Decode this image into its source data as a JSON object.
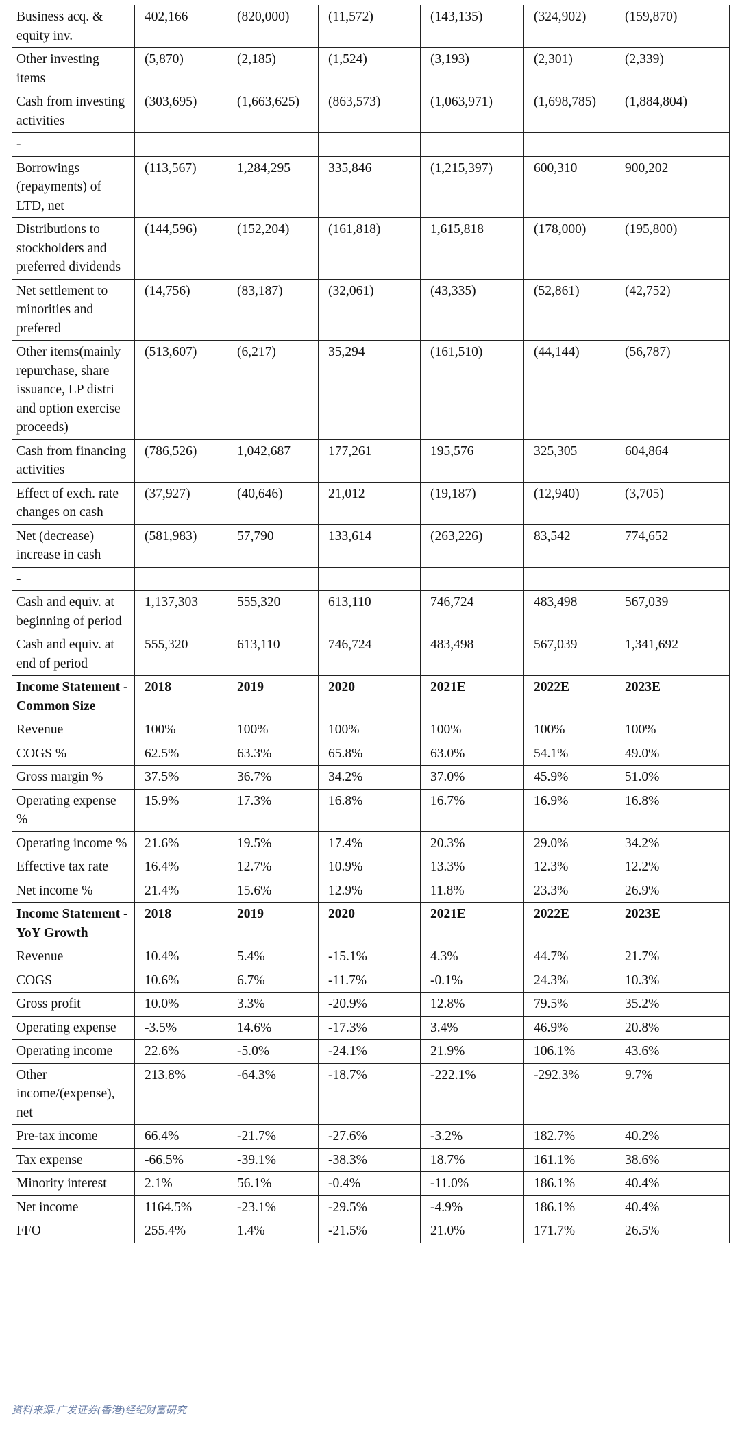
{
  "table": {
    "rows": [
      {
        "label": "Business acq. & equity inv.",
        "values": [
          "402,166",
          "(820,000)",
          "(11,572)",
          "(143,135)",
          "(324,902)",
          "(159,870)"
        ]
      },
      {
        "label": "Other investing items",
        "values": [
          "(5,870)",
          "(2,185)",
          "(1,524)",
          "(3,193)",
          "(2,301)",
          "(2,339)"
        ]
      },
      {
        "label": "Cash from investing activities",
        "values": [
          "(303,695)",
          "(1,663,625)",
          "(863,573)",
          "(1,063,971)",
          "(1,698,785)",
          "(1,884,804)"
        ]
      },
      {
        "label": "-",
        "values": []
      },
      {
        "label": "Borrowings (repayments) of LTD, net",
        "values": [
          "(113,567)",
          "1,284,295",
          "335,846",
          "(1,215,397)",
          "600,310",
          "900,202"
        ]
      },
      {
        "label": "Distributions to stockholders and preferred dividends",
        "values": [
          "(144,596)",
          "(152,204)",
          "(161,818)",
          "1,615,818",
          "(178,000)",
          "(195,800)"
        ]
      },
      {
        "label": "Net settlement to minorities and prefered",
        "values": [
          "(14,756)",
          "(83,187)",
          "(32,061)",
          "(43,335)",
          "(52,861)",
          "(42,752)"
        ]
      },
      {
        "label": "Other items(mainly repurchase, share issuance, LP distri and option exercise proceeds)",
        "values": [
          "(513,607)",
          "(6,217)",
          "35,294",
          "(161,510)",
          "(44,144)",
          "(56,787)"
        ]
      },
      {
        "label": "Cash from financing activities",
        "values": [
          "(786,526)",
          "1,042,687",
          "177,261",
          "195,576",
          "325,305",
          "604,864"
        ]
      },
      {
        "label": "Effect of exch. rate changes on cash",
        "values": [
          "(37,927)",
          "(40,646)",
          "21,012",
          "(19,187)",
          "(12,940)",
          "(3,705)"
        ]
      },
      {
        "label": "Net (decrease) increase in cash",
        "values": [
          "(581,983)",
          "57,790",
          "133,614",
          "(263,226)",
          "83,542",
          "774,652"
        ]
      },
      {
        "label": "-",
        "values": []
      },
      {
        "label": "Cash and equiv. at beginning of period",
        "values": [
          "1,137,303",
          "555,320",
          "613,110",
          "746,724",
          "483,498",
          "567,039"
        ]
      },
      {
        "label": "Cash and equiv. at end of period",
        "values": [
          "555,320",
          "613,110",
          "746,724",
          "483,498",
          "567,039",
          "1,341,692"
        ]
      },
      {
        "label": "Income Statement - Common Size",
        "values": [
          "2018",
          "2019",
          "2020",
          "2021E",
          "2022E",
          "2023E"
        ],
        "header": true
      },
      {
        "label": "Revenue",
        "values": [
          "100%",
          "100%",
          "100%",
          "100%",
          "100%",
          "100%"
        ]
      },
      {
        "label": "COGS %",
        "values": [
          "62.5%",
          "63.3%",
          "65.8%",
          "63.0%",
          "54.1%",
          "49.0%"
        ]
      },
      {
        "label": "Gross margin %",
        "values": [
          "37.5%",
          "36.7%",
          "34.2%",
          "37.0%",
          "45.9%",
          "51.0%"
        ]
      },
      {
        "label": "Operating expense %",
        "values": [
          "15.9%",
          "17.3%",
          "16.8%",
          "16.7%",
          "16.9%",
          "16.8%"
        ]
      },
      {
        "label": "Operating income %",
        "values": [
          "21.6%",
          "19.5%",
          "17.4%",
          "20.3%",
          "29.0%",
          "34.2%"
        ]
      },
      {
        "label": "Effective tax rate",
        "values": [
          "16.4%",
          "12.7%",
          "10.9%",
          "13.3%",
          "12.3%",
          "12.2%"
        ]
      },
      {
        "label": "Net income %",
        "values": [
          "21.4%",
          "15.6%",
          "12.9%",
          "11.8%",
          "23.3%",
          "26.9%"
        ]
      },
      {
        "label": "Income Statement - YoY Growth",
        "values": [
          "2018",
          "2019",
          "2020",
          "2021E",
          "2022E",
          "2023E"
        ],
        "header": true
      },
      {
        "label": "Revenue",
        "values": [
          "10.4%",
          "5.4%",
          "-15.1%",
          "4.3%",
          "44.7%",
          "21.7%"
        ]
      },
      {
        "label": "COGS",
        "values": [
          "10.6%",
          "6.7%",
          "-11.7%",
          "-0.1%",
          "24.3%",
          "10.3%"
        ]
      },
      {
        "label": "Gross profit",
        "values": [
          "10.0%",
          "3.3%",
          "-20.9%",
          "12.8%",
          "79.5%",
          "35.2%"
        ]
      },
      {
        "label": "Operating expense",
        "values": [
          "-3.5%",
          "14.6%",
          "-17.3%",
          "3.4%",
          "46.9%",
          "20.8%"
        ]
      },
      {
        "label": "Operating income",
        "values": [
          "22.6%",
          "-5.0%",
          "-24.1%",
          "21.9%",
          "106.1%",
          "43.6%"
        ]
      },
      {
        "label": "Other income/(expense), net",
        "values": [
          "213.8%",
          "-64.3%",
          "-18.7%",
          "-222.1%",
          "-292.3%",
          "9.7%"
        ]
      },
      {
        "label": "Pre-tax income",
        "values": [
          "66.4%",
          "-21.7%",
          "-27.6%",
          "-3.2%",
          "182.7%",
          "40.2%"
        ]
      },
      {
        "label": "Tax expense",
        "values": [
          "-66.5%",
          "-39.1%",
          "-38.3%",
          "18.7%",
          "161.1%",
          "38.6%"
        ]
      },
      {
        "label": "Minority interest",
        "values": [
          "2.1%",
          "56.1%",
          "-0.4%",
          "-11.0%",
          "186.1%",
          "40.4%"
        ]
      },
      {
        "label": "Net income",
        "values": [
          "1164.5%",
          "-23.1%",
          "-29.5%",
          "-4.9%",
          "186.1%",
          "40.4%"
        ]
      },
      {
        "label": "FFO",
        "values": [
          "255.4%",
          "1.4%",
          "-21.5%",
          "21.0%",
          "171.7%",
          "26.5%"
        ]
      }
    ]
  },
  "source": "资料来源:广发证券(香港)经纪财富研究"
}
